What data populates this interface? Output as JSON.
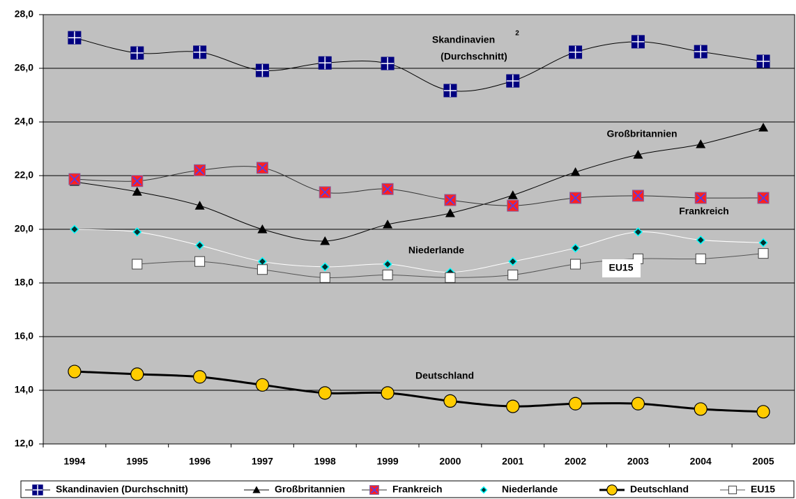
{
  "chart_data": {
    "type": "line",
    "categories": [
      "1994",
      "1995",
      "1996",
      "1997",
      "1998",
      "1999",
      "2000",
      "2001",
      "2002",
      "2003",
      "2004",
      "2005"
    ],
    "ylim": [
      12,
      28
    ],
    "yticks": [
      {
        "value": 12,
        "label": "12,0"
      },
      {
        "value": 14,
        "label": "14,0"
      },
      {
        "value": 16,
        "label": "16,0"
      },
      {
        "value": 18,
        "label": "18,0"
      },
      {
        "value": 20,
        "label": "20,0"
      },
      {
        "value": 22,
        "label": "22,0"
      },
      {
        "value": 24,
        "label": "24,0"
      },
      {
        "value": 26,
        "label": "26,0"
      },
      {
        "value": 28,
        "label": "28,0"
      }
    ],
    "grid": true,
    "legend": "bottom",
    "series": [
      {
        "name": "Skandinavien (Durchschnitt)",
        "color": "#000000",
        "marker": "square-cross",
        "marker_color": "#000080",
        "values": [
          27.14,
          26.57,
          26.6,
          25.92,
          26.2,
          26.18,
          25.17,
          25.53,
          26.6,
          26.99,
          26.62,
          26.26
        ]
      },
      {
        "name": "Großbritannien",
        "color": "#000000",
        "marker": "triangle",
        "marker_color": "#000000",
        "values": [
          21.77,
          21.4,
          20.88,
          20.0,
          19.56,
          20.18,
          20.6,
          21.27,
          22.13,
          22.78,
          23.17,
          23.79
        ]
      },
      {
        "name": "Frankreich",
        "color": "#333333",
        "marker": "square-x",
        "marker_color": "#ff2020",
        "values": [
          21.87,
          21.8,
          22.2,
          22.29,
          21.38,
          21.5,
          21.09,
          20.88,
          21.17,
          21.25,
          21.17,
          21.17
        ]
      },
      {
        "name": "Niederlande",
        "color": "#ffffff",
        "marker": "diamond",
        "marker_color": "#00a0a0",
        "values": [
          20.0,
          19.9,
          19.4,
          18.8,
          18.6,
          18.7,
          18.4,
          18.8,
          19.3,
          19.9,
          19.6,
          19.5
        ]
      },
      {
        "name": "Deutschland",
        "color": "#000000",
        "marker": "circle",
        "marker_color": "#ffcc00",
        "values": [
          14.7,
          14.6,
          14.5,
          14.2,
          13.9,
          13.9,
          13.6,
          13.4,
          13.5,
          13.5,
          13.3,
          13.2
        ]
      },
      {
        "name": "EU15",
        "color": "#555555",
        "marker": "square",
        "marker_color": "#ffffff",
        "values": [
          null,
          18.7,
          18.8,
          18.5,
          18.2,
          18.3,
          18.2,
          18.3,
          18.7,
          18.9,
          18.9,
          19.1
        ]
      }
    ],
    "annotations": [
      "Skandinavien",
      "2",
      "(Durchschnitt)",
      "Großbritannien",
      "Frankreich",
      "Niederlande",
      "EU15",
      "Deutschland"
    ]
  }
}
